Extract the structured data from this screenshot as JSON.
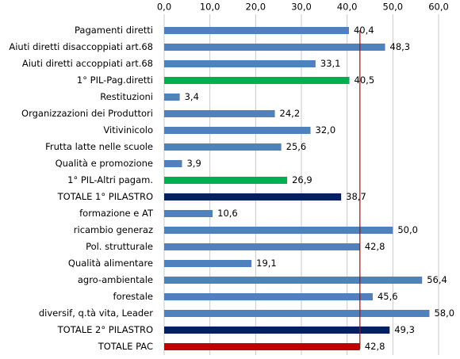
{
  "chart_data": {
    "type": "bar",
    "orientation": "horizontal",
    "categories": [
      "Pagamenti diretti",
      "Aiuti diretti disaccoppiati art.68",
      "Aiuti diretti accoppiati art.68",
      "1° PIL-Pag.diretti",
      "Restituzioni",
      "Organizzazioni dei Produttori",
      "Vitivinicolo",
      "Frutta latte nelle scuole",
      "Qualità e promozione",
      "1° PIL-Altri pagam.",
      "TOTALE 1° PILASTRO",
      "formazione e AT",
      "ricambio generaz",
      "Pol. strutturale",
      "Qualità alimentare",
      "agro-ambientale",
      "forestale",
      "diversif, q.tà vita, Leader",
      "TOTALE 2° PILASTRO",
      "TOTALE PAC"
    ],
    "values": [
      40.4,
      48.3,
      33.1,
      40.5,
      3.4,
      24.2,
      32.0,
      25.6,
      3.9,
      26.9,
      38.7,
      10.6,
      50.0,
      42.8,
      19.1,
      56.4,
      45.6,
      58.0,
      49.3,
      42.8
    ],
    "value_labels": [
      "40,4",
      "48,3",
      "33,1",
      "40,5",
      "3,4",
      "24,2",
      "32,0",
      "25,6",
      "3,9",
      "26,9",
      "38,7",
      "10,6",
      "50,0",
      "42,8",
      "19,1",
      "56,4",
      "45,6",
      "58,0",
      "49,3",
      "42,8"
    ],
    "colors": [
      "#4f81bd",
      "#4f81bd",
      "#4f81bd",
      "#00b050",
      "#4f81bd",
      "#4f81bd",
      "#4f81bd",
      "#4f81bd",
      "#4f81bd",
      "#00b050",
      "#002060",
      "#4f81bd",
      "#4f81bd",
      "#4f81bd",
      "#4f81bd",
      "#4f81bd",
      "#4f81bd",
      "#4f81bd",
      "#002060",
      "#c00000"
    ],
    "xlim": [
      0,
      60
    ],
    "xticks": [
      {
        "value": 0,
        "label": "0,0"
      },
      {
        "value": 10,
        "label": "10,0"
      },
      {
        "value": 20,
        "label": "20,0"
      },
      {
        "value": 30,
        "label": "30,0"
      },
      {
        "value": 40,
        "label": "40,0"
      },
      {
        "value": 50,
        "label": "50,0"
      },
      {
        "value": 60,
        "label": "60,0"
      }
    ],
    "grid": true,
    "reference_line": {
      "value": 42.8,
      "color": "#c00000"
    }
  }
}
